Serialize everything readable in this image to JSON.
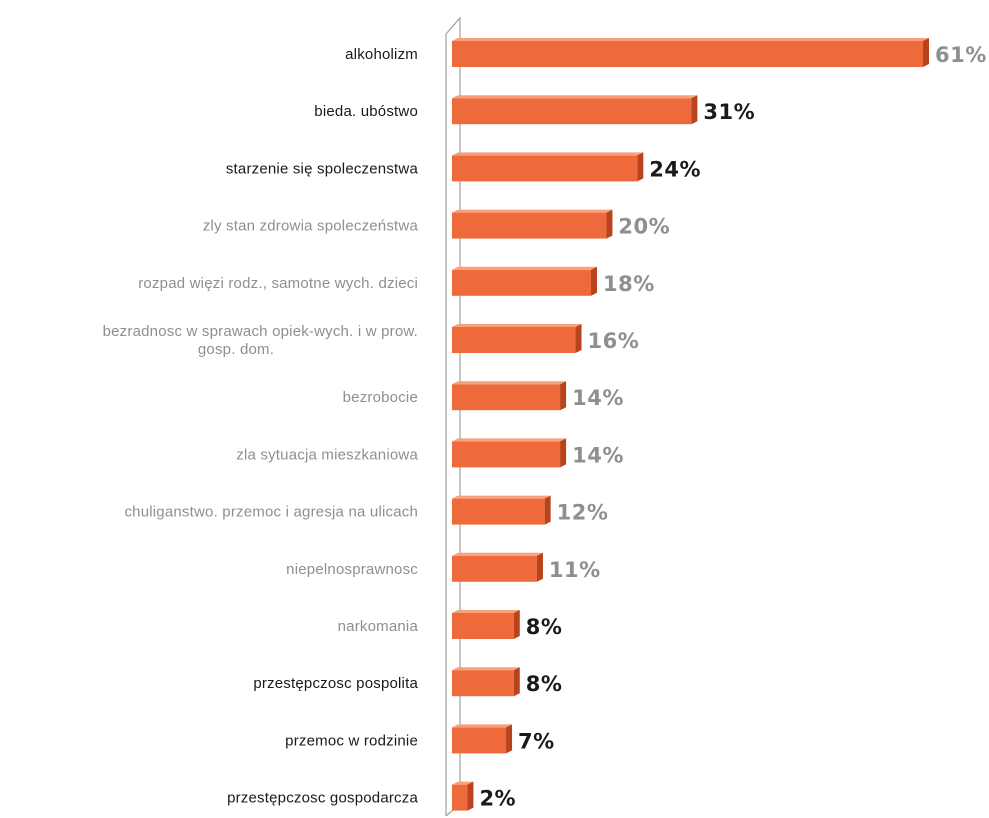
{
  "chart_data": {
    "type": "bar",
    "orientation": "horizontal",
    "title": "",
    "xlabel": "",
    "ylabel": "",
    "value_suffix": "%",
    "xlim": [
      0,
      61
    ],
    "grid": false,
    "legend": "none",
    "categories": [
      [
        "alkoholizm"
      ],
      [
        "bieda. ubóstwo"
      ],
      [
        "starzenie się spoleczenstwa"
      ],
      [
        "zly stan zdrowia spoleczeństwa"
      ],
      [
        "rozpad więzi rodz., samotne wych. dzieci"
      ],
      [
        "bezradnosc w sprawach opiek-wych. i w prow.",
        "gosp. dom."
      ],
      [
        "bezrobocie"
      ],
      [
        "zla sytuacja mieszkaniowa"
      ],
      [
        "chuliganstwo. przemoc i agresja na ulicach"
      ],
      [
        "niepelnosprawnosc"
      ],
      [
        "narkomania"
      ],
      [
        "przestępczosc pospolita"
      ],
      [
        "przemoc w rodzinie"
      ],
      [
        "przestępczosc gospodarcza"
      ]
    ],
    "values": [
      61,
      31,
      24,
      20,
      18,
      16,
      14,
      14,
      12,
      11,
      8,
      8,
      7,
      2
    ],
    "label_emphasis": [
      "dark",
      "dark",
      "dark",
      "light",
      "light",
      "light",
      "light",
      "light",
      "light",
      "light",
      "light",
      "dark",
      "dark",
      "dark"
    ],
    "value_label_emphasis": [
      "light",
      "dark",
      "dark",
      "light",
      "light",
      "light",
      "light",
      "light",
      "light",
      "light",
      "dark",
      "dark",
      "dark",
      "dark"
    ]
  },
  "colors": {
    "bar_front": "#ee6a3a",
    "bar_top": "#f7a07a",
    "bar_side": "#b8431c",
    "dark_text": "#1a1a1a",
    "light_text": "#8f8f8f",
    "axis": "#a0a0a0"
  }
}
